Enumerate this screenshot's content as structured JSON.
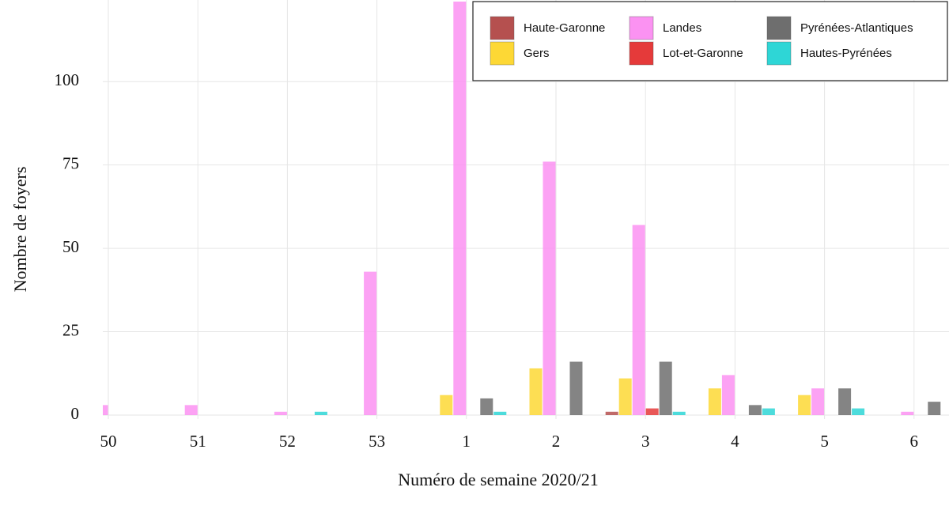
{
  "chart_data": {
    "type": "bar",
    "x_label": "Numéro de semaine 2020/21",
    "y_label": "Nombre de foyers",
    "categories": [
      "50",
      "51",
      "52",
      "53",
      "1",
      "2",
      "3",
      "4",
      "5",
      "6"
    ],
    "series": [
      {
        "name": "Haute-Garonne",
        "color": "#b5504f",
        "values": [
          0,
          0,
          0,
          0,
          0,
          0,
          1,
          0,
          0,
          0
        ]
      },
      {
        "name": "Gers",
        "color": "#fdd835",
        "values": [
          0,
          0,
          0,
          0,
          6,
          14,
          11,
          8,
          6,
          0
        ]
      },
      {
        "name": "Landes",
        "color": "#fb92f2",
        "values": [
          3,
          3,
          1,
          43,
          124,
          76,
          57,
          12,
          8,
          1
        ]
      },
      {
        "name": "Lot-et-Garonne",
        "color": "#e53a3a",
        "values": [
          0,
          0,
          0,
          0,
          0,
          0,
          2,
          0,
          0,
          0
        ]
      },
      {
        "name": "Pyrénées-Atlantiques",
        "color": "#6e6e6e",
        "values": [
          0,
          0,
          0,
          0,
          5,
          16,
          16,
          3,
          8,
          4
        ]
      },
      {
        "name": "Hautes-Pyrénées",
        "color": "#2ed6d6",
        "values": [
          0,
          0,
          1,
          0,
          1,
          0,
          1,
          2,
          2,
          0
        ]
      }
    ],
    "ylim": [
      0,
      124
    ],
    "yticks": [
      0,
      25,
      50,
      75,
      100
    ],
    "grid": true,
    "legend": "top-right"
  }
}
